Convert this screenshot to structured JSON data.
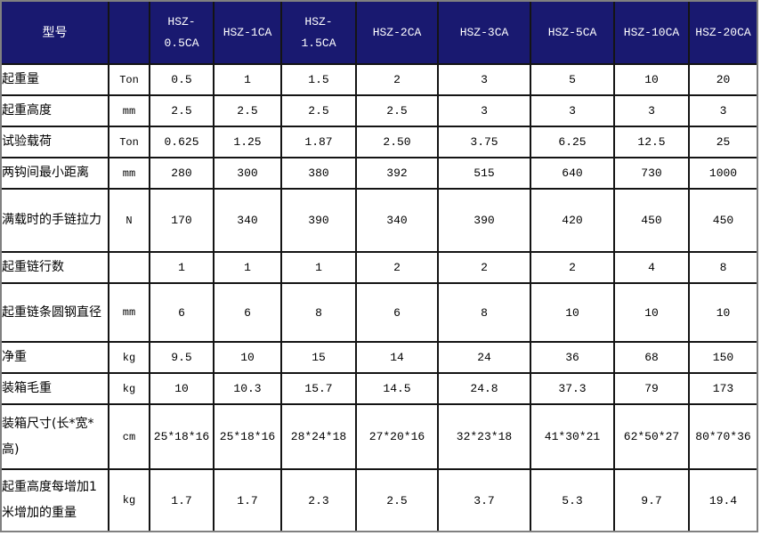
{
  "table": {
    "header": {
      "label": "型号",
      "unit_label": "",
      "models": [
        "HSZ-0.5CA",
        "HSZ-1CA",
        "HSZ-1.5CA",
        "HSZ-2CA",
        "HSZ-3CA",
        "HSZ-5CA",
        "HSZ-10CA",
        "HSZ-20CA"
      ]
    },
    "rows": [
      {
        "label": "起重量",
        "unit": "Ton",
        "values": [
          "0.5",
          "1",
          "1.5",
          "2",
          "3",
          "5",
          "10",
          "20"
        ]
      },
      {
        "label": "起重高度",
        "unit": "mm",
        "values": [
          "2.5",
          "2.5",
          "2.5",
          "2.5",
          "3",
          "3",
          "3",
          "3"
        ]
      },
      {
        "label": "试验载荷",
        "unit": "Ton",
        "values": [
          "0.625",
          "1.25",
          "1.87",
          "2.50",
          "3.75",
          "6.25",
          "12.5",
          "25"
        ]
      },
      {
        "label": "两钩间最小距离",
        "unit": "mm",
        "values": [
          "280",
          "300",
          "380",
          "392",
          "515",
          "640",
          "730",
          "1000"
        ]
      },
      {
        "label": "满载时的手链拉力",
        "unit": "N",
        "values": [
          "170",
          "340",
          "390",
          "340",
          "390",
          "420",
          "450",
          "450"
        ]
      },
      {
        "label": "起重链行数",
        "unit": "",
        "values": [
          "1",
          "1",
          "1",
          "2",
          "2",
          "2",
          "4",
          "8"
        ]
      },
      {
        "label": "起重链条圆钢直径",
        "unit": "mm",
        "values": [
          "6",
          "6",
          "8",
          "6",
          "8",
          "10",
          "10",
          "10"
        ]
      },
      {
        "label": "净重",
        "unit": "kg",
        "values": [
          "9.5",
          "10",
          "15",
          "14",
          "24",
          "36",
          "68",
          "150"
        ]
      },
      {
        "label": "装箱毛重",
        "unit": "kg",
        "values": [
          "10",
          "10.3",
          "15.7",
          "14.5",
          "24.8",
          "37.3",
          "79",
          "173"
        ]
      },
      {
        "label": "装箱尺寸(长*宽*高)",
        "unit": "cm",
        "values": [
          "25*18*16",
          "25*18*16",
          "28*24*18",
          "27*20*16",
          "32*23*18",
          "41*30*21",
          "62*50*27",
          "80*70*36"
        ]
      },
      {
        "label": "起重高度每增加1米增加的重量",
        "unit": "kg",
        "values": [
          "1.7",
          "1.7",
          "2.3",
          "2.5",
          "3.7",
          "5.3",
          "9.7",
          "19.4"
        ]
      }
    ],
    "colors": {
      "header_bg": "#191970",
      "header_text": "#ffffff",
      "grid_border": "#141414",
      "outer_border": "#808080",
      "body_bg": "#ffffff",
      "body_text": "#000000"
    }
  }
}
